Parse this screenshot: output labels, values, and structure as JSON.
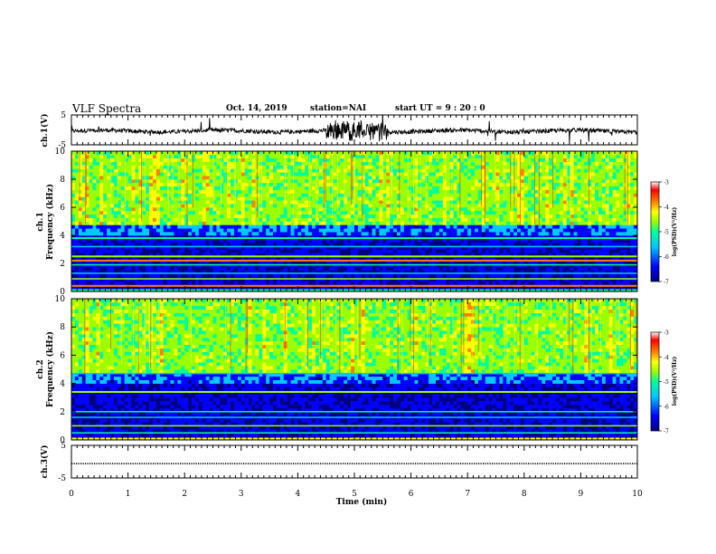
{
  "header": {
    "title": "VLF Spectra",
    "date": "Oct. 14, 2019",
    "station": "station=NAI",
    "start_ut": "start  UT =   9 : 20 : 0"
  },
  "colors": {
    "frame": "#000000",
    "colormap": [
      "#00007f",
      "#0000ff",
      "#00c8ff",
      "#00ff9a",
      "#9aff00",
      "#ffff00",
      "#ff8000",
      "#ff0000",
      "#ffffff"
    ]
  },
  "chart_data": [
    {
      "type": "line",
      "panel": "ch1-waveform",
      "ylabel": "ch.1(V)",
      "ylim": [
        -5,
        5
      ],
      "y_ticks": [
        "5",
        "-5"
      ],
      "x_range": [
        0,
        10
      ],
      "baseline": 0,
      "note_values": "noisy signal near 0 V with bursts between 4.5 and 5.5 min"
    },
    {
      "type": "heatmap",
      "panel": "ch1-spectrogram",
      "ylabel": "ch.1\nFrequency (kHz)",
      "ylim": [
        0,
        10
      ],
      "y_ticks": [
        "0",
        "2",
        "4",
        "6",
        "8",
        "10"
      ],
      "x_range": [
        0,
        10
      ],
      "colorbar": {
        "label": "log(PSD)(V²/Hz)",
        "range": [
          -7,
          -3
        ],
        "ticks": [
          "-3",
          "-4",
          "-5",
          "-6",
          "-7"
        ]
      }
    },
    {
      "type": "heatmap",
      "panel": "ch2-spectrogram",
      "ylabel": "ch.2\nFrequency (kHz)",
      "ylim": [
        0,
        10
      ],
      "y_ticks": [
        "0",
        "2",
        "4",
        "6",
        "8",
        "10"
      ],
      "x_range": [
        0,
        10
      ],
      "colorbar": {
        "label": "log(PSD)(V²/Hz)",
        "range": [
          -7,
          -3
        ],
        "ticks": [
          "-3",
          "-4",
          "-5",
          "-6",
          "-7"
        ]
      }
    },
    {
      "type": "line",
      "panel": "ch3-waveform",
      "ylabel": "ch.3(V)",
      "ylim": [
        -5,
        5
      ],
      "y_ticks": [
        "5",
        "-5"
      ],
      "x_range": [
        0,
        10
      ],
      "baseline": 0
    }
  ],
  "x_axis": {
    "label": "Time (min)",
    "ticks": [
      "0",
      "1",
      "2",
      "3",
      "4",
      "5",
      "6",
      "7",
      "8",
      "9",
      "10"
    ],
    "range": [
      0,
      10
    ]
  }
}
